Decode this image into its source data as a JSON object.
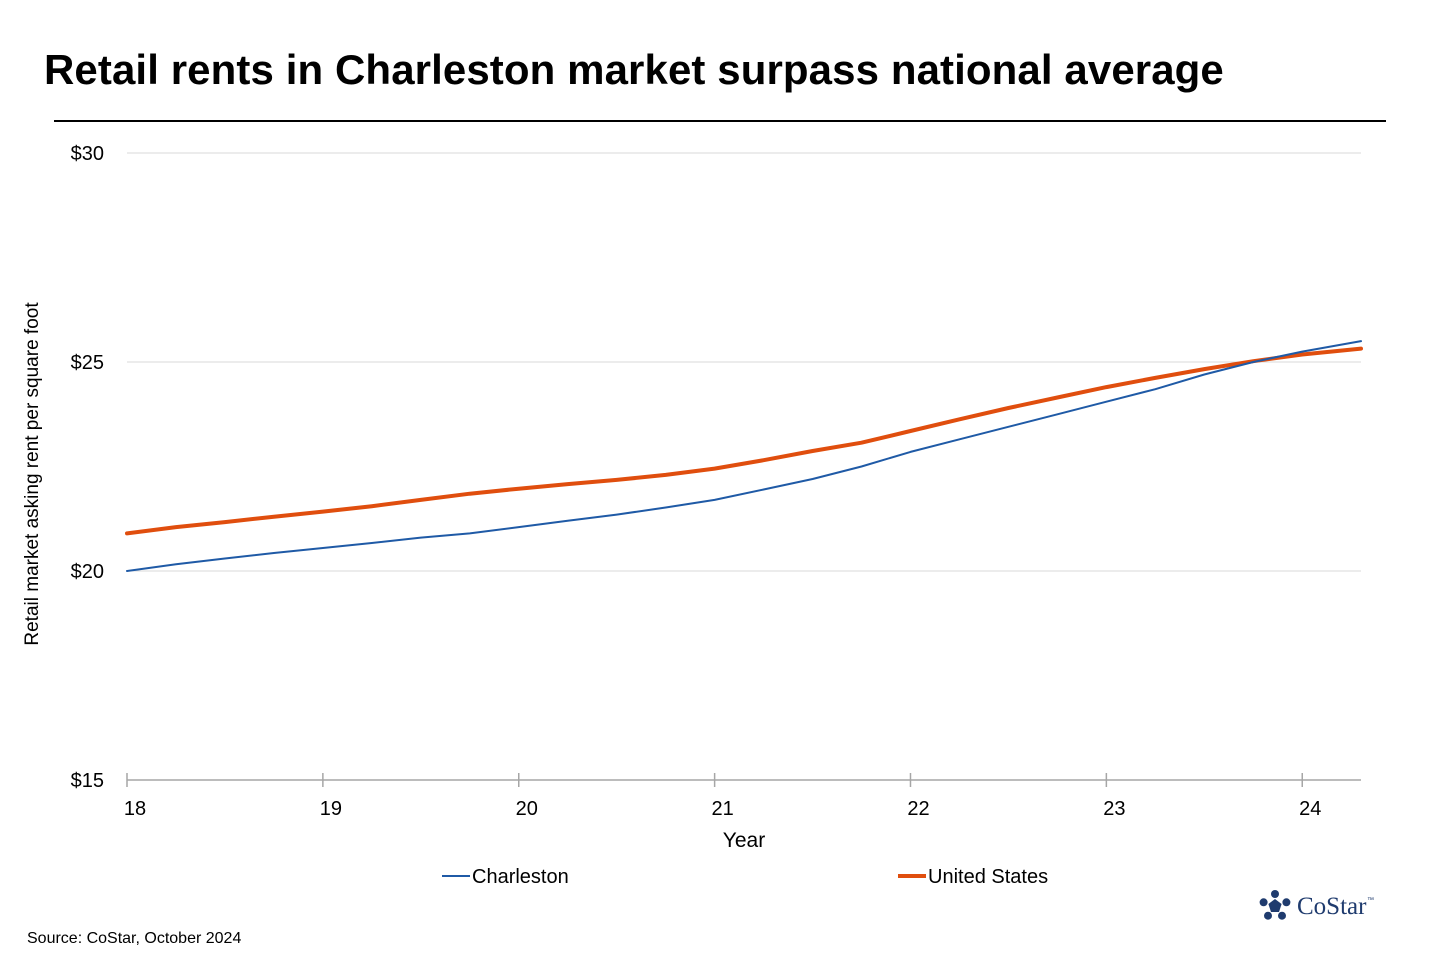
{
  "title": "Retail rents in Charleston market surpass national average",
  "source": "Source: CoStar, October 2024",
  "logo": {
    "text": "CoStar",
    "trademark": "™",
    "color": "#1f3b6e"
  },
  "chart_data": {
    "type": "line",
    "xlabel": "Year",
    "ylabel": "Retail market asking rent per square foot",
    "xlim": [
      18,
      24.3
    ],
    "ylim": [
      15,
      30
    ],
    "x_ticks": [
      18,
      19,
      20,
      21,
      22,
      23,
      24
    ],
    "x_tick_labels": [
      "18",
      "19",
      "20",
      "21",
      "22",
      "23",
      "24"
    ],
    "y_ticks": [
      15,
      20,
      25,
      30
    ],
    "y_tick_labels": [
      "$15",
      "$20",
      "$25",
      "$30"
    ],
    "grid": "horizontal",
    "legend_position": "bottom",
    "x": [
      18.0,
      18.25,
      18.5,
      18.75,
      19.0,
      19.25,
      19.5,
      19.75,
      20.0,
      20.25,
      20.5,
      20.75,
      21.0,
      21.25,
      21.5,
      21.75,
      22.0,
      22.25,
      22.5,
      22.75,
      23.0,
      23.25,
      23.5,
      23.75,
      24.0,
      24.3
    ],
    "series": [
      {
        "name": "Charleston",
        "color": "#1f5aa6",
        "values": [
          20.0,
          20.16,
          20.3,
          20.43,
          20.55,
          20.67,
          20.8,
          20.9,
          21.05,
          21.2,
          21.35,
          21.52,
          21.7,
          21.95,
          22.2,
          22.5,
          22.85,
          23.15,
          23.45,
          23.75,
          24.05,
          24.35,
          24.7,
          25.0,
          25.25,
          25.5
        ]
      },
      {
        "name": "United States",
        "color": "#e04e0e",
        "values": [
          20.9,
          21.05,
          21.17,
          21.3,
          21.42,
          21.55,
          21.7,
          21.85,
          21.97,
          22.08,
          22.18,
          22.3,
          22.45,
          22.65,
          22.87,
          23.07,
          23.35,
          23.63,
          23.9,
          24.15,
          24.4,
          24.62,
          24.83,
          25.02,
          25.18,
          25.32
        ]
      }
    ]
  }
}
